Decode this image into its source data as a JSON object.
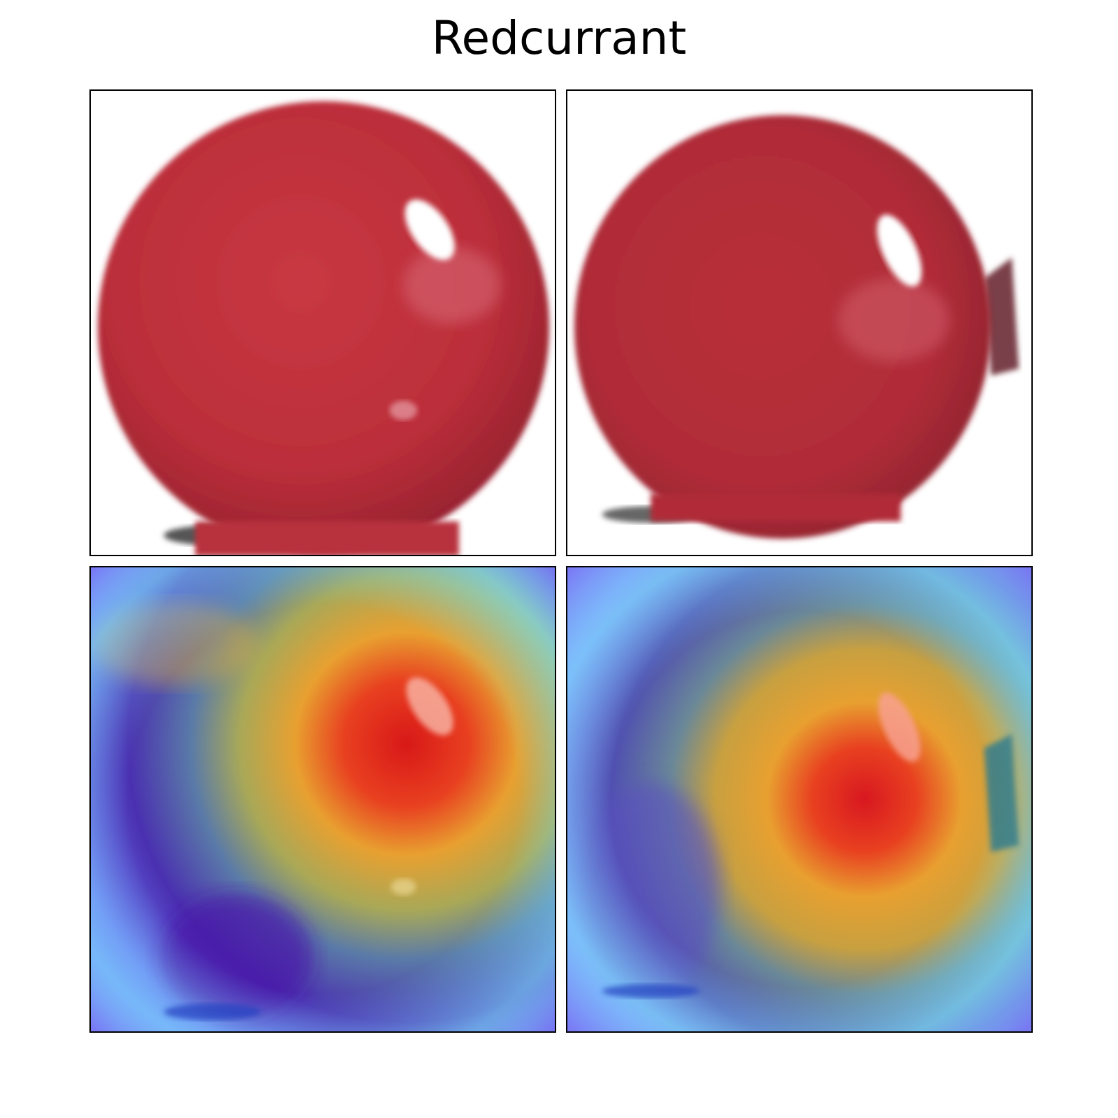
{
  "figure": {
    "title": "Redcurrant"
  },
  "panels": [
    {
      "row": "original",
      "index": 1
    },
    {
      "row": "original",
      "index": 2
    },
    {
      "row": "heatmap-overlay",
      "index": 1
    },
    {
      "row": "heatmap-overlay",
      "index": 2
    }
  ],
  "colors": {
    "berry": "#c0303c",
    "berry_shadow": "#a82630",
    "highlight": "#ffffff",
    "heat_low": "#5a1aa8",
    "heat_mid": "#f0c030",
    "heat_high": "#e01818",
    "cool_edge": "#7fe8ff"
  }
}
